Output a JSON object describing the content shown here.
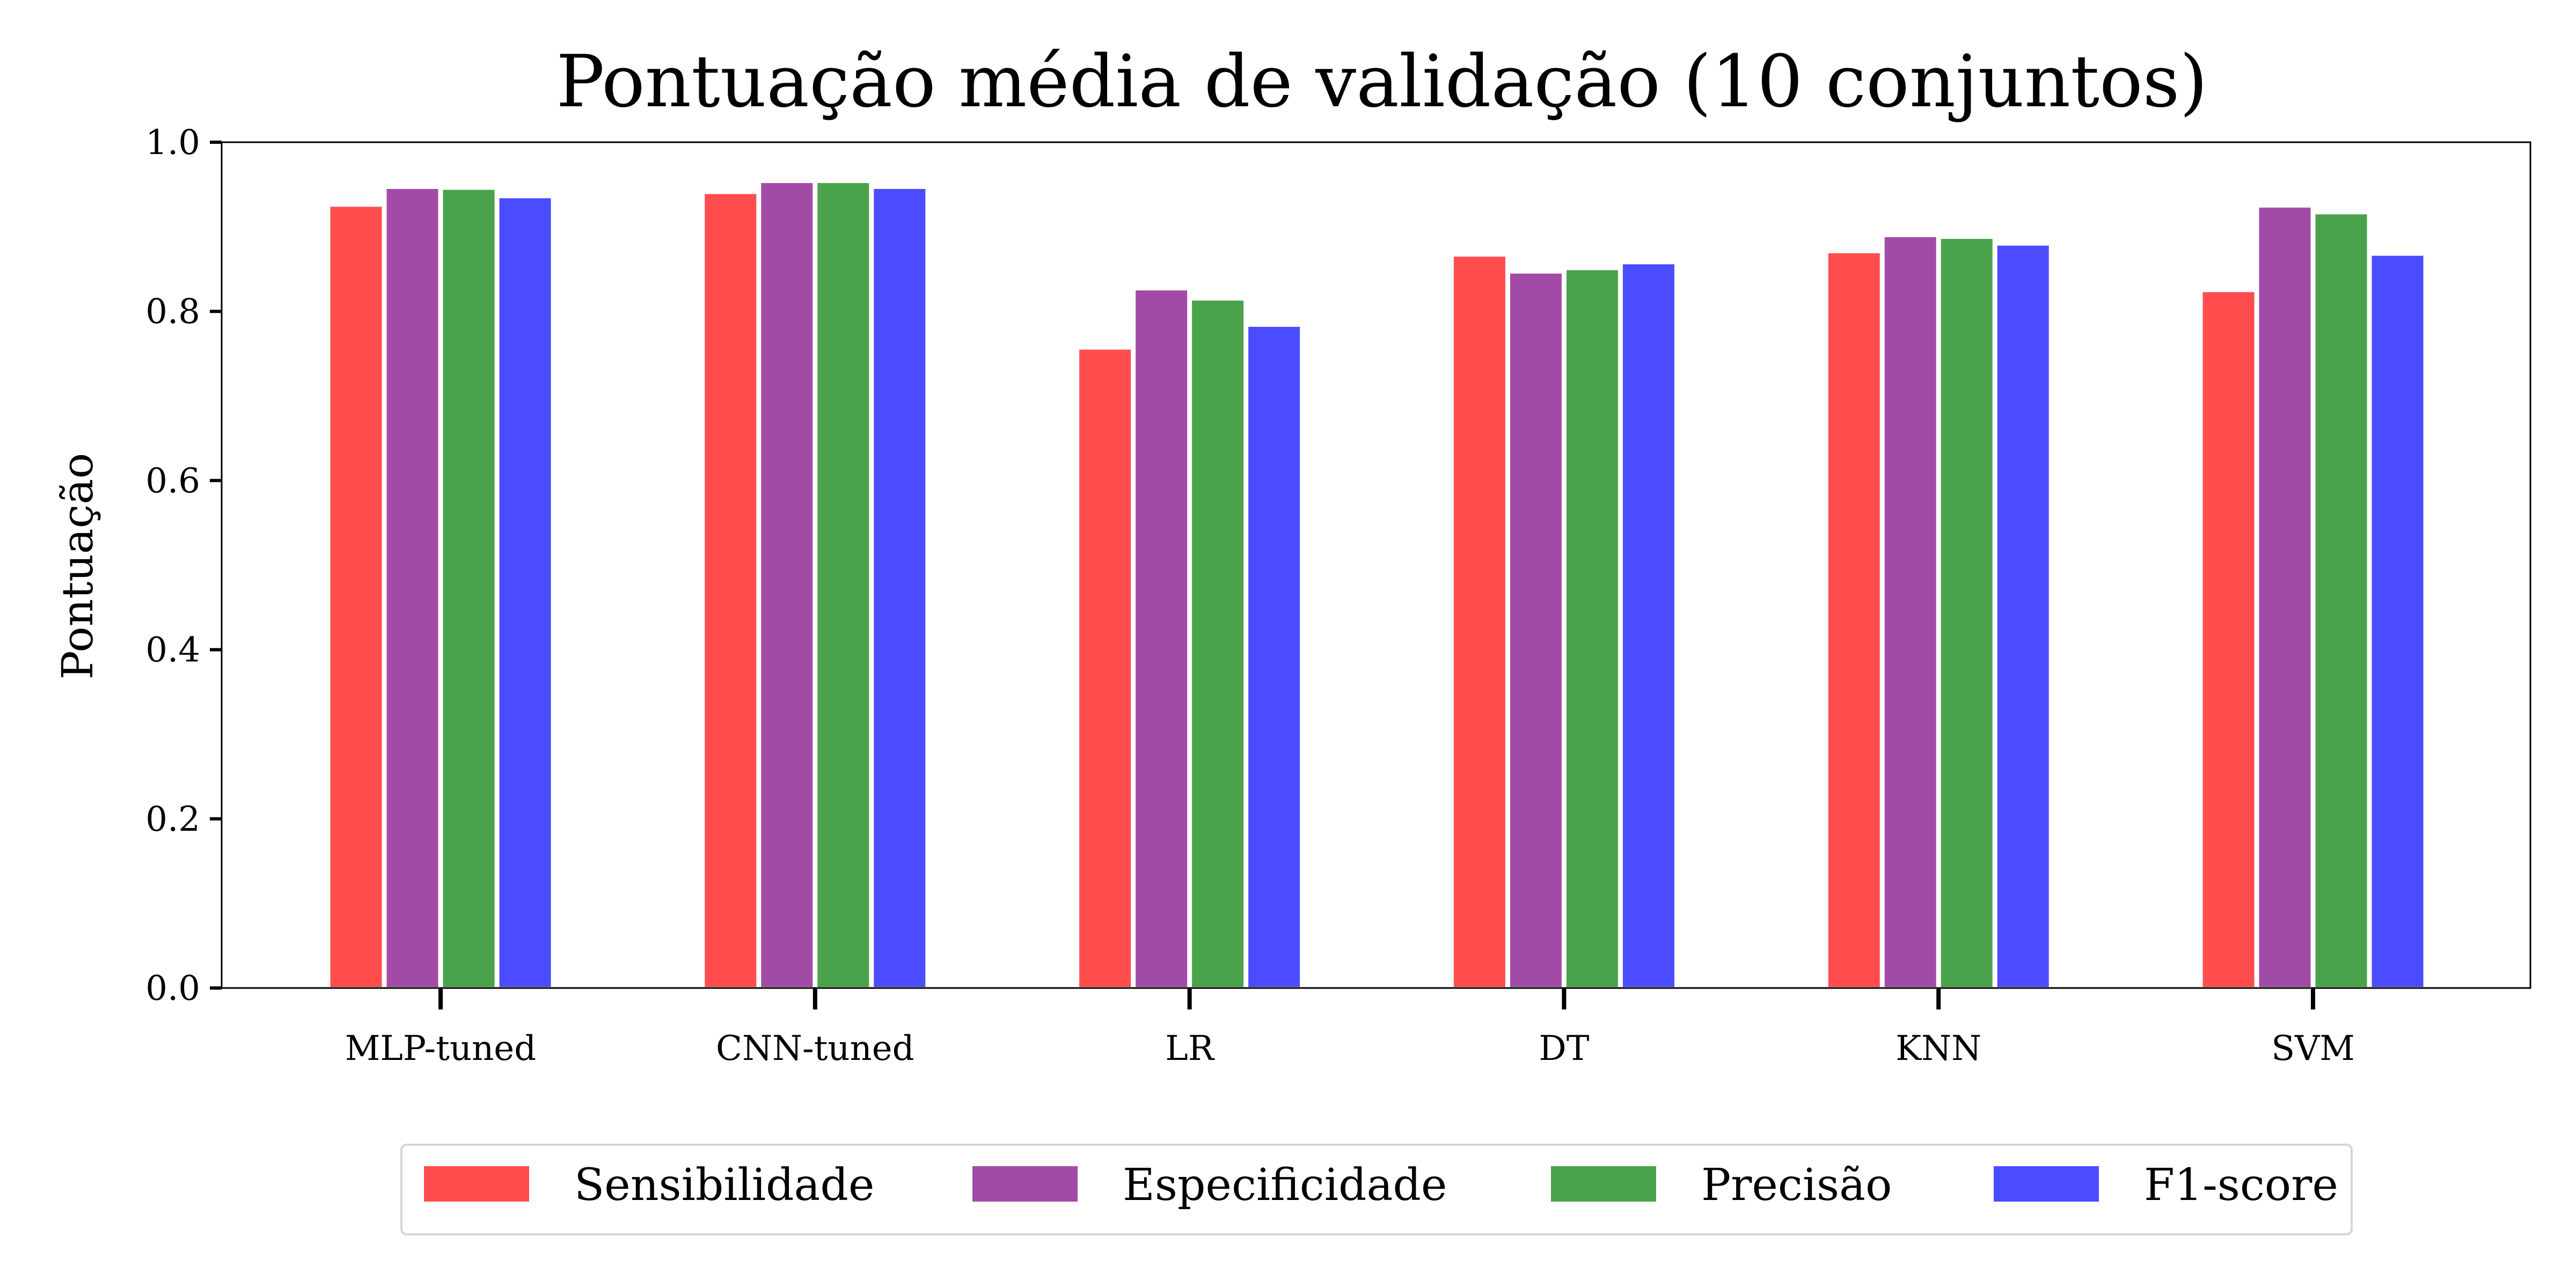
{
  "chart_data": {
    "type": "bar",
    "title": "Pontuação média de validação (10 conjuntos)",
    "xlabel": "",
    "ylabel": "Pontuação",
    "ylim": [
      0,
      1.0
    ],
    "yticks": [
      "0.0",
      "0.2",
      "0.4",
      "0.6",
      "0.8",
      "1.0"
    ],
    "categories": [
      "MLP-tuned",
      "CNN-tuned",
      "LR",
      "DT",
      "KNN",
      "SVM"
    ],
    "series": [
      {
        "name": "Sensibilidade",
        "color": "#ff4d4d",
        "values": [
          0.925,
          0.94,
          0.756,
          0.866,
          0.87,
          0.824
        ]
      },
      {
        "name": "Especificidade",
        "color": "#a24ba6",
        "values": [
          0.946,
          0.953,
          0.826,
          0.846,
          0.889,
          0.924
        ]
      },
      {
        "name": "Precisão",
        "color": "#4aa34a",
        "values": [
          0.945,
          0.953,
          0.814,
          0.85,
          0.887,
          0.916
        ]
      },
      {
        "name": "F1-score",
        "color": "#4b4bff",
        "values": [
          0.935,
          0.946,
          0.783,
          0.857,
          0.879,
          0.867
        ]
      }
    ],
    "grid": false,
    "legend": "bottom"
  }
}
